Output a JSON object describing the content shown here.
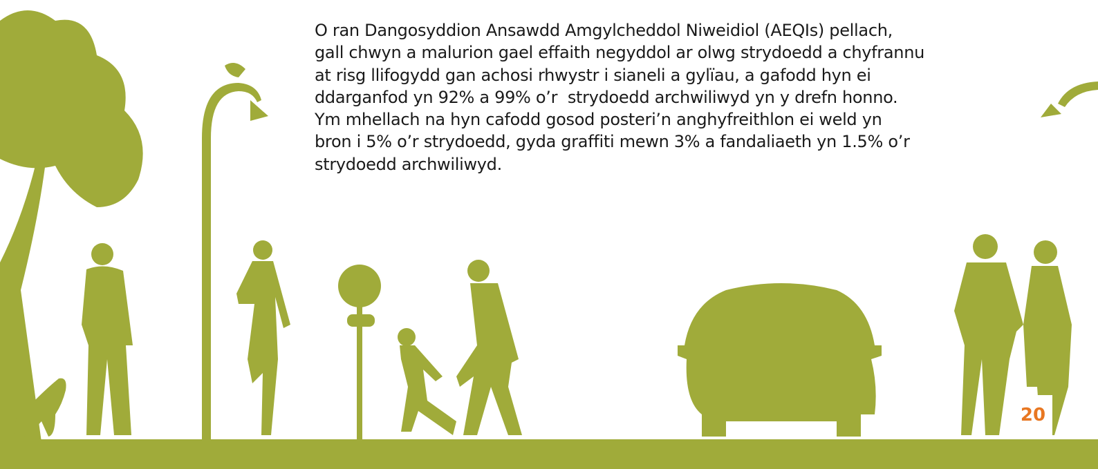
{
  "body": {
    "lines": [
      "O ran Dangosyddion Ansawdd Amgylcheddol Niweidiol (AEQIs) pellach,",
      "gall chwyn a malurion gael effaith negyddol ar olwg strydoedd a chyfrannu",
      "at risg llifogydd gan achosi rhwystr i sianeli a gylïau, a gafodd hyn ei",
      "ddarganfod yn 92% a 99% o’r  strydoedd archwiliwyd yn y drefn honno.",
      "Ym mhellach na hyn cafodd gosod posteri’n anghyfreithlon ei weld yn",
      "bron i 5% o’r strydoedd, gyda graffiti mewn 3% a fandaliaeth yn 1.5% o’r",
      "strydoedd archwiliwyd."
    ]
  },
  "page_number": "20"
}
